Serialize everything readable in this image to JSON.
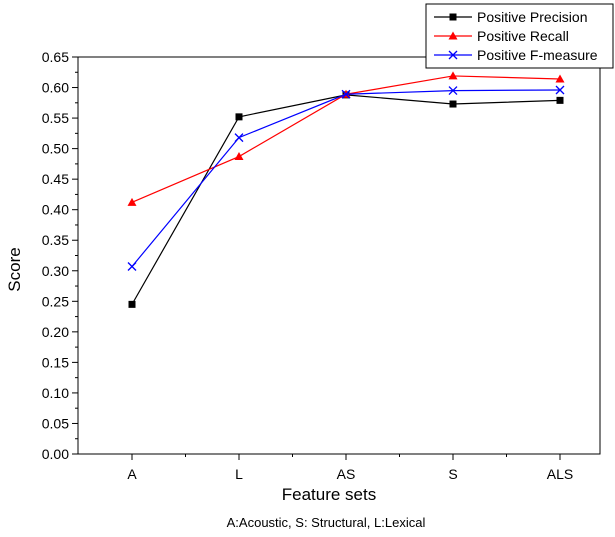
{
  "chart_data": {
    "type": "line",
    "categories": [
      "A",
      "L",
      "AS",
      "S",
      "ALS"
    ],
    "xlabel": "Feature sets",
    "ylabel": "Score",
    "note": "A:Acoustic, S: Structural, L:Lexical",
    "ylim": [
      0,
      0.65
    ],
    "yticks": [
      "0.00",
      "0.05",
      "0.10",
      "0.15",
      "0.20",
      "0.25",
      "0.30",
      "0.35",
      "0.40",
      "0.45",
      "0.50",
      "0.55",
      "0.60",
      "0.65"
    ],
    "grid": false,
    "legend_position": "top-right",
    "series": [
      {
        "name": "Positive Precision",
        "color": "#000000",
        "marker": "square",
        "values": [
          0.245,
          0.552,
          0.588,
          0.573,
          0.579
        ]
      },
      {
        "name": "Positive Recall",
        "color": "#ff0000",
        "marker": "triangle",
        "values": [
          0.412,
          0.487,
          0.589,
          0.619,
          0.614
        ]
      },
      {
        "name": "Positive F-measure",
        "color": "#0000ff",
        "marker": "x",
        "values": [
          0.307,
          0.518,
          0.589,
          0.595,
          0.596
        ]
      }
    ]
  }
}
